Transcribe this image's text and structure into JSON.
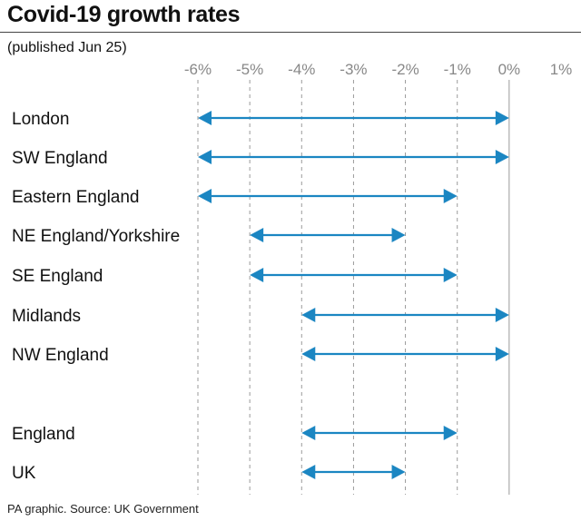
{
  "header": {
    "title": "Covid-19 growth rates",
    "subtitle": "(published Jun 25)"
  },
  "footer": {
    "source": "PA graphic. Source: UK Government"
  },
  "colors": {
    "arrow": "#1b86c2",
    "grid": "#9a9a9a",
    "tick_text": "#888888"
  },
  "chart_data": {
    "type": "range",
    "x_ticks": [
      -6,
      -5,
      -4,
      -3,
      -2,
      -1,
      0,
      1
    ],
    "x_tick_labels": [
      "-6%",
      "-5%",
      "-4%",
      "-3%",
      "-2%",
      "-1%",
      "0%",
      "1%"
    ],
    "xlim": [
      -6,
      1
    ],
    "zero_line_solid": true,
    "rows": [
      {
        "label": "London",
        "low": -6,
        "high": 0
      },
      {
        "label": "SW England",
        "low": -6,
        "high": 0
      },
      {
        "label": "Eastern England",
        "low": -6,
        "high": -1
      },
      {
        "label": "NE England/Yorkshire",
        "low": -5,
        "high": -2
      },
      {
        "label": "SE England",
        "low": -5,
        "high": -1
      },
      {
        "label": "Midlands",
        "low": -4,
        "high": 0
      },
      {
        "label": "NW England",
        "low": -4,
        "high": 0
      },
      {
        "label": "England",
        "low": -4,
        "high": -1
      },
      {
        "label": "UK",
        "low": -4,
        "high": -2
      }
    ]
  }
}
